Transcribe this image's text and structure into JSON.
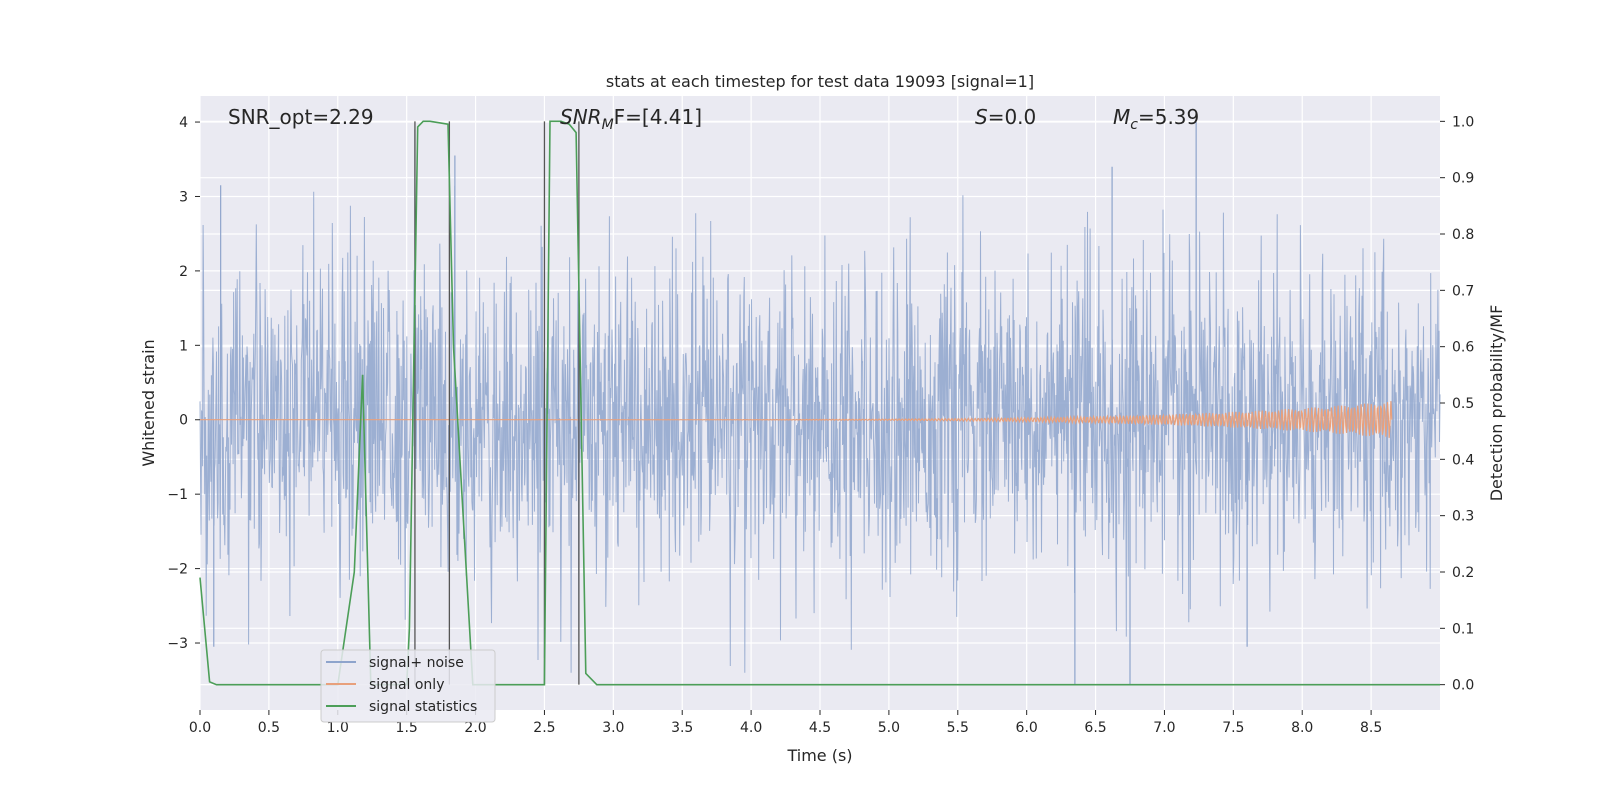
{
  "chart_data": {
    "type": "line",
    "title": "stats at each timestep for test data 19093 [signal=1]",
    "xlabel": "Time (s)",
    "ylabel_left": "Whitened strain",
    "ylabel_right": "Detection probability/MF",
    "xlim": [
      0,
      9.0
    ],
    "ylim_left": [
      -3.9,
      4.35
    ],
    "ylim_right": [
      -0.045,
      1.045
    ],
    "x_ticks": [
      "0.0",
      "0.5",
      "1.0",
      "1.5",
      "2.0",
      "2.5",
      "3.0",
      "3.5",
      "4.0",
      "4.5",
      "5.0",
      "5.5",
      "6.0",
      "6.5",
      "7.0",
      "7.5",
      "8.0",
      "8.5"
    ],
    "y_left_ticks": [
      "−3",
      "−2",
      "−1",
      "0",
      "1",
      "2",
      "3",
      "4"
    ],
    "y_right_ticks": [
      "0.0",
      "0.1",
      "0.2",
      "0.3",
      "0.4",
      "0.5",
      "0.6",
      "0.7",
      "0.8",
      "0.9",
      "1.0"
    ],
    "grid": true,
    "legend_position": "lower-left",
    "annotations": {
      "snr_opt": "SNR_opt=2.29",
      "snr_mf_main": "SNR",
      "snr_mf_sub": "M",
      "snr_mf_rest": "F=[4.41]",
      "s_var": "S",
      "s_rest": "=0.0",
      "mc_main": "M",
      "mc_sub": "c",
      "mc_rest": "=5.39"
    },
    "series": [
      {
        "name": "signal+ noise",
        "color": "#8ea4cc",
        "kind": "noise",
        "x_range": [
          0,
          9.0
        ],
        "typical_amplitude": 1.0,
        "extremes": [
          {
            "x": 0.15,
            "y": 3.15
          },
          {
            "x": 1.56,
            "y": 3.9
          },
          {
            "x": 1.85,
            "y": 3.55
          },
          {
            "x": 7.23,
            "y": 4.0
          },
          {
            "x": 6.62,
            "y": 3.4
          },
          {
            "x": 6.35,
            "y": -3.55
          },
          {
            "x": 6.75,
            "y": -3.55
          },
          {
            "x": 0.1,
            "y": -3.05
          },
          {
            "x": 2.5,
            "y": -3.2
          },
          {
            "x": 7.6,
            "y": -3.05
          }
        ]
      },
      {
        "name": "signal only",
        "color": "#e8a07c",
        "kind": "chirp",
        "x_start": 0.0,
        "x_end": 8.65,
        "max_amplitude": 0.25
      },
      {
        "name": "signal statistics",
        "color": "#4c9e58",
        "kind": "line",
        "axis": "right",
        "x": [
          0.0,
          0.07,
          0.12,
          1.0,
          1.12,
          1.18,
          1.24,
          1.5,
          1.52,
          1.58,
          1.62,
          1.67,
          1.8,
          1.84,
          1.98,
          2.5,
          2.54,
          2.62,
          2.68,
          2.73,
          2.8,
          2.88,
          9.0
        ],
        "y": [
          0.19,
          0.005,
          0.0,
          0.0,
          0.2,
          0.55,
          0.0,
          0.0,
          0.1,
          0.99,
          1.0,
          1.0,
          0.995,
          0.6,
          0.0,
          0.0,
          1.0,
          1.0,
          0.995,
          0.98,
          0.02,
          0.0,
          0.0
        ]
      }
    ],
    "vertical_lines": [
      1.56,
      1.81,
      2.5,
      2.75
    ],
    "vertical_line_color": "#555555"
  }
}
